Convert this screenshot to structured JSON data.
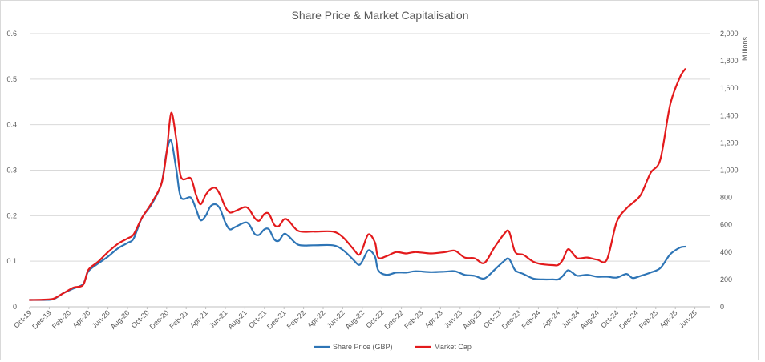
{
  "chart_data": {
    "type": "line",
    "title": "Share Price & Market Capitalisation",
    "y2_unit": "Millions",
    "x_tick_labels": [
      "Oct-19",
      "Dec-19",
      "Feb-20",
      "Apr-20",
      "Jun-20",
      "Aug-20",
      "Oct-20",
      "Dec-20",
      "Feb-21",
      "Apr-21",
      "Jun-21",
      "Aug-21",
      "Oct-21",
      "Dec-21",
      "Feb-22",
      "Apr-22",
      "Jun-22",
      "Aug-22",
      "Oct-22",
      "Dec-22",
      "Feb-23",
      "Apr-23",
      "Jun-23",
      "Aug-23",
      "Oct-23",
      "Dec-23",
      "Feb-24",
      "Apr-24",
      "Jun-24",
      "Aug-24",
      "Oct-24",
      "Dec-24",
      "Feb-25",
      "Apr-25",
      "Jun-25"
    ],
    "y_left": {
      "ticks": [
        "0",
        "0.1",
        "0.2",
        "0.3",
        "0.4",
        "0.5",
        "0.6"
      ],
      "min": 0,
      "max": 0.6
    },
    "y_right": {
      "ticks": [
        "0",
        "200",
        "400",
        "600",
        "800",
        "1,000",
        "1,200",
        "1,400",
        "1,600",
        "1,800",
        "2,000"
      ],
      "min": 0,
      "max": 2000
    },
    "grid": true,
    "legend_position": "bottom",
    "series": [
      {
        "name": "Share Price (GBP)",
        "axis": "left",
        "color": "#2E75B6",
        "points": [
          [
            "2019-10-01",
            0.015
          ],
          [
            "2019-11-15",
            0.015
          ],
          [
            "2019-12-15",
            0.017
          ],
          [
            "2020-01-15",
            0.03
          ],
          [
            "2020-02-15",
            0.04
          ],
          [
            "2020-03-15",
            0.05
          ],
          [
            "2020-04-01",
            0.078
          ],
          [
            "2020-05-01",
            0.095
          ],
          [
            "2020-06-01",
            0.11
          ],
          [
            "2020-07-01",
            0.128
          ],
          [
            "2020-08-01",
            0.14
          ],
          [
            "2020-08-20",
            0.15
          ],
          [
            "2020-09-15",
            0.195
          ],
          [
            "2020-10-15",
            0.225
          ],
          [
            "2020-11-15",
            0.27
          ],
          [
            "2020-12-01",
            0.34
          ],
          [
            "2020-12-15",
            0.365
          ],
          [
            "2021-01-01",
            0.3
          ],
          [
            "2021-01-15",
            0.24
          ],
          [
            "2021-02-15",
            0.24
          ],
          [
            "2021-03-01",
            0.215
          ],
          [
            "2021-03-15",
            0.19
          ],
          [
            "2021-04-01",
            0.2
          ],
          [
            "2021-04-15",
            0.22
          ],
          [
            "2021-05-01",
            0.225
          ],
          [
            "2021-05-15",
            0.215
          ],
          [
            "2021-06-01",
            0.185
          ],
          [
            "2021-06-15",
            0.17
          ],
          [
            "2021-07-01",
            0.175
          ],
          [
            "2021-08-01",
            0.185
          ],
          [
            "2021-08-15",
            0.18
          ],
          [
            "2021-09-01",
            0.16
          ],
          [
            "2021-09-15",
            0.158
          ],
          [
            "2021-10-01",
            0.17
          ],
          [
            "2021-10-15",
            0.17
          ],
          [
            "2021-11-01",
            0.148
          ],
          [
            "2021-11-15",
            0.145
          ],
          [
            "2021-12-01",
            0.16
          ],
          [
            "2021-12-15",
            0.155
          ],
          [
            "2022-01-15",
            0.136
          ],
          [
            "2022-03-01",
            0.135
          ],
          [
            "2022-05-01",
            0.135
          ],
          [
            "2022-06-01",
            0.125
          ],
          [
            "2022-07-01",
            0.105
          ],
          [
            "2022-07-20",
            0.092
          ],
          [
            "2022-08-01",
            0.1
          ],
          [
            "2022-08-20",
            0.124
          ],
          [
            "2022-09-10",
            0.11
          ],
          [
            "2022-09-20",
            0.08
          ],
          [
            "2022-10-15",
            0.07
          ],
          [
            "2022-11-15",
            0.075
          ],
          [
            "2022-12-15",
            0.075
          ],
          [
            "2023-01-15",
            0.078
          ],
          [
            "2023-03-01",
            0.076
          ],
          [
            "2023-04-15",
            0.077
          ],
          [
            "2023-05-15",
            0.078
          ],
          [
            "2023-06-15",
            0.07
          ],
          [
            "2023-07-15",
            0.068
          ],
          [
            "2023-08-15",
            0.062
          ],
          [
            "2023-09-15",
            0.08
          ],
          [
            "2023-10-15",
            0.1
          ],
          [
            "2023-11-01",
            0.105
          ],
          [
            "2023-11-20",
            0.08
          ],
          [
            "2023-12-15",
            0.072
          ],
          [
            "2024-01-15",
            0.062
          ],
          [
            "2024-02-15",
            0.06
          ],
          [
            "2024-03-15",
            0.06
          ],
          [
            "2024-04-01",
            0.06
          ],
          [
            "2024-04-15",
            0.067
          ],
          [
            "2024-05-01",
            0.08
          ],
          [
            "2024-05-15",
            0.075
          ],
          [
            "2024-06-01",
            0.068
          ],
          [
            "2024-07-01",
            0.07
          ],
          [
            "2024-08-01",
            0.066
          ],
          [
            "2024-09-01",
            0.066
          ],
          [
            "2024-10-01",
            0.064
          ],
          [
            "2024-11-01",
            0.072
          ],
          [
            "2024-11-20",
            0.063
          ],
          [
            "2024-12-15",
            0.068
          ],
          [
            "2025-01-15",
            0.075
          ],
          [
            "2025-02-15",
            0.085
          ],
          [
            "2025-03-15",
            0.115
          ],
          [
            "2025-04-15",
            0.13
          ],
          [
            "2025-05-01",
            0.132
          ]
        ]
      },
      {
        "name": "Market Cap",
        "axis": "right",
        "color": "#E31A1C",
        "points": [
          [
            "2019-10-01",
            50
          ],
          [
            "2019-11-15",
            52
          ],
          [
            "2019-12-15",
            60
          ],
          [
            "2020-01-15",
            100
          ],
          [
            "2020-02-15",
            140
          ],
          [
            "2020-03-15",
            160
          ],
          [
            "2020-04-01",
            270
          ],
          [
            "2020-05-01",
            330
          ],
          [
            "2020-06-01",
            400
          ],
          [
            "2020-07-01",
            460
          ],
          [
            "2020-08-01",
            500
          ],
          [
            "2020-08-20",
            530
          ],
          [
            "2020-09-15",
            650
          ],
          [
            "2020-10-15",
            760
          ],
          [
            "2020-11-15",
            900
          ],
          [
            "2020-12-01",
            1130
          ],
          [
            "2020-12-15",
            1420
          ],
          [
            "2021-01-01",
            1220
          ],
          [
            "2021-01-15",
            950
          ],
          [
            "2021-02-15",
            940
          ],
          [
            "2021-03-01",
            820
          ],
          [
            "2021-03-15",
            750
          ],
          [
            "2021-04-01",
            820
          ],
          [
            "2021-04-15",
            860
          ],
          [
            "2021-05-01",
            870
          ],
          [
            "2021-05-15",
            820
          ],
          [
            "2021-06-01",
            730
          ],
          [
            "2021-06-15",
            690
          ],
          [
            "2021-07-01",
            700
          ],
          [
            "2021-08-01",
            730
          ],
          [
            "2021-08-15",
            710
          ],
          [
            "2021-09-01",
            650
          ],
          [
            "2021-09-15",
            630
          ],
          [
            "2021-10-01",
            680
          ],
          [
            "2021-10-15",
            680
          ],
          [
            "2021-11-01",
            600
          ],
          [
            "2021-11-15",
            590
          ],
          [
            "2021-12-01",
            640
          ],
          [
            "2021-12-15",
            630
          ],
          [
            "2022-01-15",
            555
          ],
          [
            "2022-03-01",
            550
          ],
          [
            "2022-05-01",
            550
          ],
          [
            "2022-06-01",
            510
          ],
          [
            "2022-07-01",
            430
          ],
          [
            "2022-07-20",
            380
          ],
          [
            "2022-08-01",
            420
          ],
          [
            "2022-08-20",
            530
          ],
          [
            "2022-09-10",
            470
          ],
          [
            "2022-09-20",
            360
          ],
          [
            "2022-10-15",
            370
          ],
          [
            "2022-11-15",
            400
          ],
          [
            "2022-12-15",
            390
          ],
          [
            "2023-01-15",
            400
          ],
          [
            "2023-03-01",
            390
          ],
          [
            "2023-04-15",
            400
          ],
          [
            "2023-05-15",
            410
          ],
          [
            "2023-06-15",
            360
          ],
          [
            "2023-07-15",
            355
          ],
          [
            "2023-08-15",
            320
          ],
          [
            "2023-09-15",
            430
          ],
          [
            "2023-10-15",
            530
          ],
          [
            "2023-11-01",
            550
          ],
          [
            "2023-11-20",
            400
          ],
          [
            "2023-12-15",
            380
          ],
          [
            "2024-01-15",
            330
          ],
          [
            "2024-02-15",
            310
          ],
          [
            "2024-03-15",
            305
          ],
          [
            "2024-04-01",
            305
          ],
          [
            "2024-04-15",
            340
          ],
          [
            "2024-05-01",
            420
          ],
          [
            "2024-05-15",
            395
          ],
          [
            "2024-06-01",
            355
          ],
          [
            "2024-07-01",
            360
          ],
          [
            "2024-08-01",
            345
          ],
          [
            "2024-09-01",
            345
          ],
          [
            "2024-10-01",
            620
          ],
          [
            "2024-11-01",
            720
          ],
          [
            "2024-11-20",
            760
          ],
          [
            "2024-12-15",
            820
          ],
          [
            "2025-01-15",
            980
          ],
          [
            "2025-02-15",
            1080
          ],
          [
            "2025-03-15",
            1480
          ],
          [
            "2025-04-15",
            1680
          ],
          [
            "2025-05-01",
            1740
          ]
        ]
      }
    ]
  }
}
